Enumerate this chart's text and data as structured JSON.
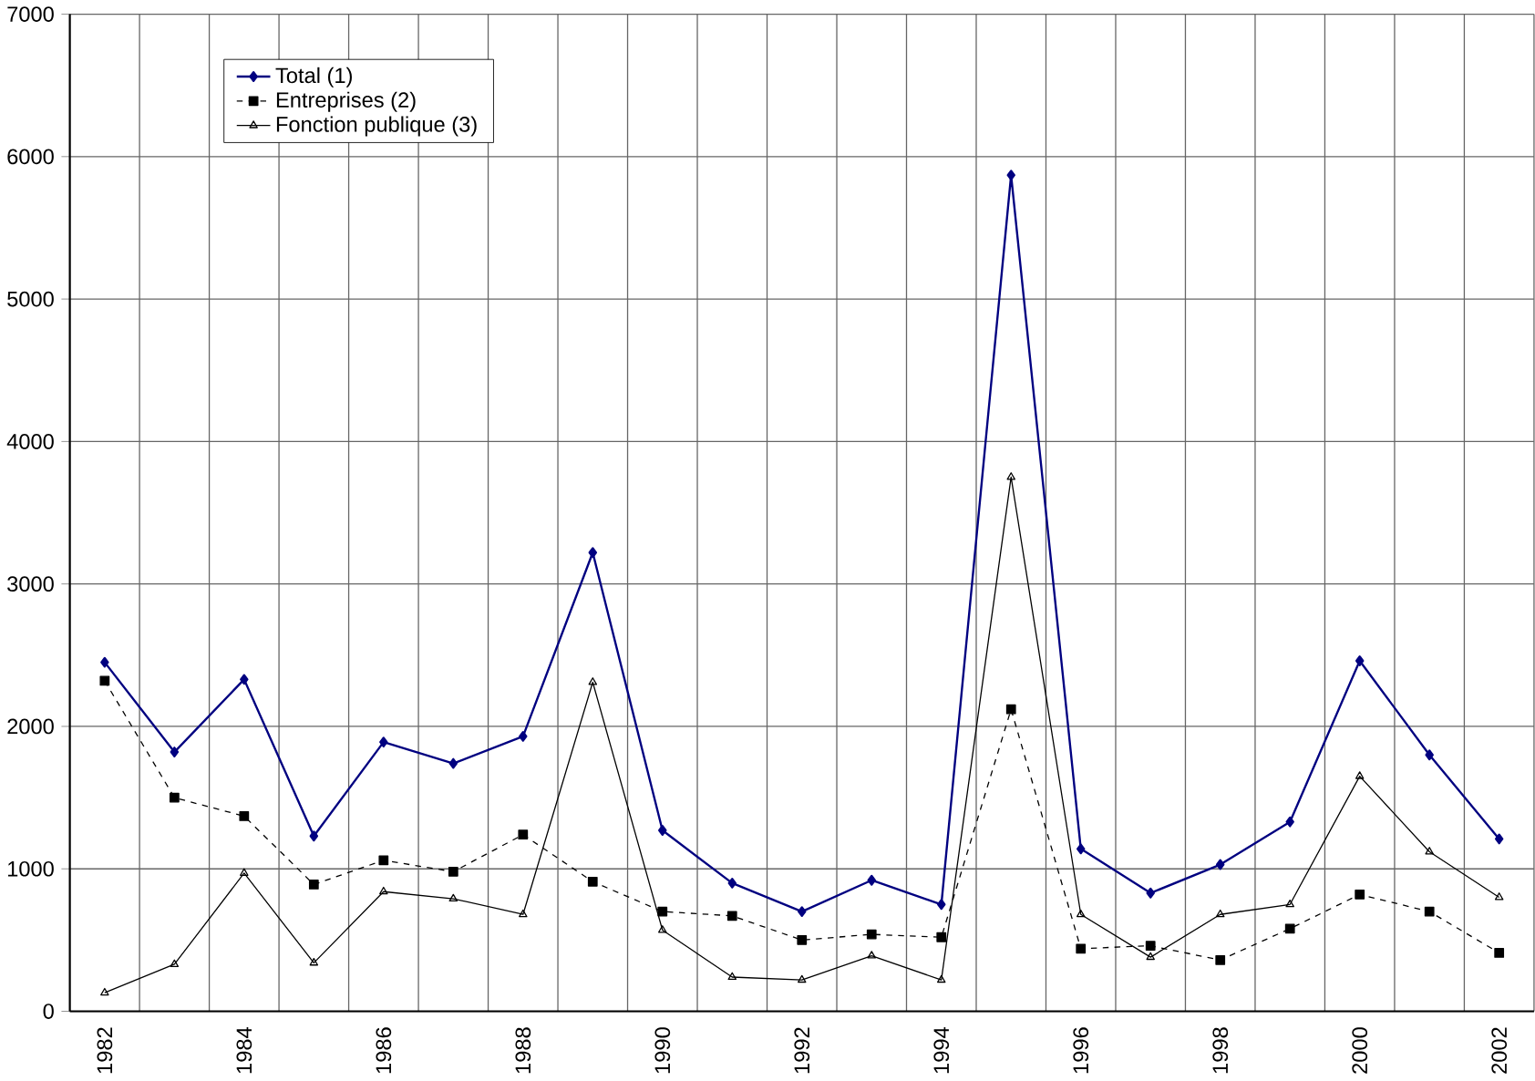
{
  "chart_data": {
    "type": "line",
    "categories": [
      "1982",
      null,
      "1984",
      null,
      "1986",
      null,
      "1988",
      null,
      "1990",
      null,
      "1992",
      null,
      "1994",
      null,
      "1996",
      null,
      "1998",
      null,
      "2000",
      null,
      "2002"
    ],
    "series": [
      {
        "name": "Total (1)",
        "color": "#000080",
        "marker": "diamond",
        "line_style": "solid",
        "values": [
          2450,
          1820,
          2330,
          1230,
          1890,
          1740,
          1930,
          3220,
          1270,
          900,
          700,
          920,
          750,
          5870,
          1140,
          830,
          1030,
          1330,
          2460,
          1800,
          1210
        ]
      },
      {
        "name": "Entreprises  (2)",
        "color": "#000000",
        "marker": "square",
        "line_style": "dashed",
        "values": [
          2320,
          1500,
          1370,
          890,
          1060,
          980,
          1240,
          910,
          700,
          670,
          500,
          540,
          520,
          2120,
          440,
          460,
          360,
          580,
          820,
          700,
          410
        ]
      },
      {
        "name": "Fonction publique (3)",
        "color": "#000000",
        "marker": "triangle",
        "line_style": "solid",
        "values": [
          130,
          330,
          970,
          340,
          840,
          790,
          680,
          2310,
          570,
          240,
          220,
          390,
          220,
          3750,
          680,
          380,
          680,
          750,
          1650,
          1120,
          800
        ]
      }
    ],
    "ylim": [
      0,
      7000
    ],
    "yticks": [
      0,
      1000,
      2000,
      3000,
      4000,
      5000,
      6000,
      7000
    ],
    "grid": true,
    "legend": "top"
  }
}
